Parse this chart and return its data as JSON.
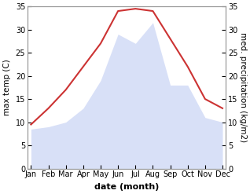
{
  "months": [
    "Jan",
    "Feb",
    "Mar",
    "Apr",
    "May",
    "Jun",
    "Jul",
    "Aug",
    "Sep",
    "Oct",
    "Nov",
    "Dec"
  ],
  "temperature": [
    9.5,
    13.0,
    17.0,
    22.0,
    27.0,
    34.0,
    34.5,
    34.0,
    28.0,
    22.0,
    15.0,
    13.0
  ],
  "precipitation": [
    8.5,
    9.0,
    10.0,
    13.0,
    19.0,
    29.0,
    27.0,
    31.5,
    18.0,
    18.0,
    11.0,
    10.0
  ],
  "temp_color": "#cc3333",
  "precip_color": "#aabbee",
  "ylim": [
    0,
    35
  ],
  "yticks": [
    0,
    5,
    10,
    15,
    20,
    25,
    30,
    35
  ],
  "xlabel": "date (month)",
  "ylabel_left": "max temp (C)",
  "ylabel_right": "med. precipitation (kg/m2)",
  "bg_color": "#ffffff",
  "label_fontsize": 7.5,
  "tick_fontsize": 7.0
}
